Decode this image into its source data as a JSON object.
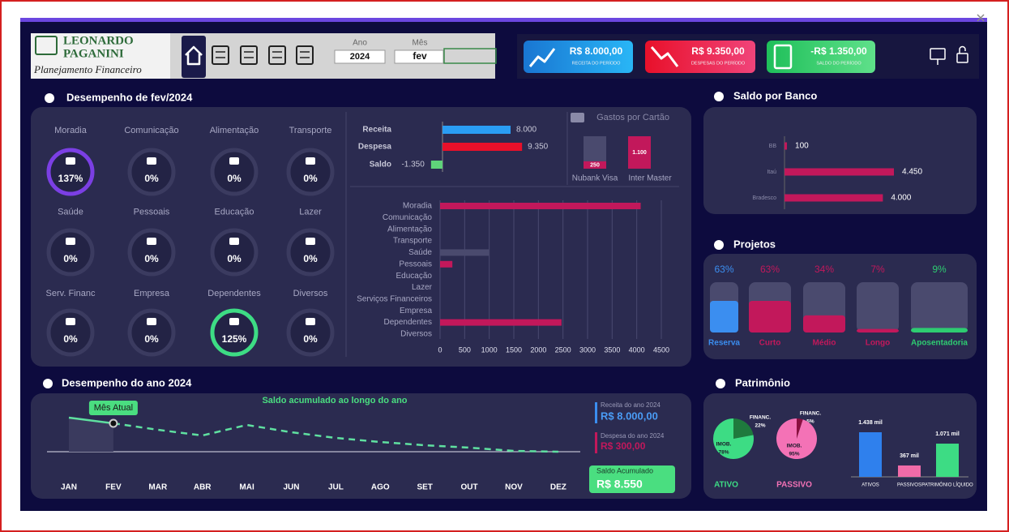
{
  "header": {
    "logo_line1": "LEONARDO",
    "logo_line2": "PAGANINI",
    "logo_subtitle": "Planejamento Financeiro",
    "year_label": "Ano",
    "year": "2024",
    "month_label": "Mês",
    "month": "fev"
  },
  "kpis": [
    {
      "value": "R$ 8.000,00",
      "label": "RECEITA DO PERÍODO"
    },
    {
      "value": "R$ 9.350,00",
      "label": "DESPESAS DO PERÍODO"
    },
    {
      "value": "-R$ 1.350,00",
      "label": "SALDO DO PERÍODO"
    }
  ],
  "performance": {
    "title": "Desempenho de fev/2024",
    "gauges": {
      "categories": [
        "Moradia",
        "Comunicação",
        "Alimentação",
        "Transporte",
        "Saúde",
        "Pessoais",
        "Educação",
        "Lazer",
        "Serv. Financ",
        "Empresa",
        "Dependentes",
        "Diversos"
      ],
      "values": [
        137,
        0,
        0,
        0,
        0,
        0,
        0,
        0,
        0,
        0,
        125,
        0
      ],
      "value_labels": [
        "137%",
        "0%",
        "0%",
        "0%",
        "0%",
        "0%",
        "0%",
        "0%",
        "0%",
        "0%",
        "125%",
        "0%"
      ],
      "colors": [
        "#7b3fe4",
        "#3b3b60",
        "#3b3b60",
        "#3b3b60",
        "#3b3b60",
        "#3b3b60",
        "#3b3b60",
        "#3b3b60",
        "#3b3b60",
        "#3b3b60",
        "#3ddc84",
        "#3b3b60"
      ]
    },
    "summary": {
      "categories": [
        "Receita",
        "Despesa",
        "Saldo"
      ],
      "values": [
        8000,
        9350,
        -1350
      ],
      "value_labels": [
        "8.000",
        "9.350",
        "-1.350"
      ],
      "colors": [
        "#2a9df4",
        "#e8102a",
        "#5fd37a"
      ]
    },
    "cards": {
      "title": "Gastos por Cartão",
      "categories": [
        "Nubank Visa",
        "Inter Master"
      ],
      "values": [
        250,
        1100
      ],
      "value_labels": [
        "250",
        "1.100"
      ],
      "color": "#c2185b"
    },
    "expenses": {
      "categories": [
        "Moradia",
        "Comunicação",
        "Alimentação",
        "Transporte",
        "Saúde",
        "Pessoais",
        "Educação",
        "Lazer",
        "Serviços Financeiros",
        "Empresa",
        "Dependentes",
        "Diversos"
      ],
      "values": [
        4080,
        0,
        0,
        0,
        990,
        250,
        0,
        0,
        0,
        0,
        2470,
        0
      ],
      "colors": [
        "#c2185b",
        "#c2185b",
        "#c2185b",
        "#c2185b",
        "#4a4a6e",
        "#c2185b",
        "#c2185b",
        "#c2185b",
        "#c2185b",
        "#c2185b",
        "#c2185b",
        "#c2185b"
      ],
      "xlim": [
        0,
        4500
      ],
      "xticks": [
        0,
        500,
        1000,
        1500,
        2000,
        2500,
        3000,
        3500,
        4000,
        4500
      ]
    }
  },
  "bank": {
    "title": "Saldo por Banco",
    "categories": [
      "BB",
      "Itaú",
      "Bradesco"
    ],
    "values": [
      100,
      4450,
      4000
    ],
    "value_labels": [
      "100",
      "4.450",
      "4.000"
    ],
    "color": "#c2185b"
  },
  "projects": {
    "title": "Projetos",
    "categories": [
      "Reserva",
      "Curto",
      "Médio",
      "Longo",
      "Aposentadoria"
    ],
    "values": [
      63,
      63,
      34,
      7,
      9
    ],
    "value_labels": [
      "63%",
      "63%",
      "34%",
      "7%",
      "9%"
    ],
    "colors": [
      "#3b8ef0",
      "#c2185b",
      "#c2185b",
      "#c2185b",
      "#2ecc71"
    ]
  },
  "year": {
    "title": "Desempenho do ano 2024",
    "chart_title": "Saldo acumulado ao longo do ano",
    "callout": "Mês Atual",
    "categories": [
      "JAN",
      "FEV",
      "MAR",
      "ABR",
      "MAI",
      "JUN",
      "JUL",
      "AGO",
      "SET",
      "OUT",
      "NOV",
      "DEZ"
    ],
    "values": [
      10260,
      8550,
      6600,
      4890,
      8060,
      5860,
      4150,
      2930,
      1950,
      1220,
      240,
      0
    ],
    "color": "#5fe0a0",
    "receita_label": "Receita do ano 2024",
    "receita": "R$ 8.000,00",
    "despesa_label": "Despesa do ano 2024",
    "despesa": "R$ 300,00",
    "saldo_label": "Saldo Acumulado",
    "saldo": "R$ 8.550"
  },
  "patrimonio": {
    "title": "Patrimônio",
    "pies": [
      {
        "title": "ATIVO",
        "categories": [
          "FINANC.",
          "IMOB."
        ],
        "values": [
          22,
          78
        ],
        "value_labels": [
          "22%",
          "78%"
        ],
        "colors": [
          "#1f7a3d",
          "#3ddc84"
        ]
      },
      {
        "title": "PASSIVO",
        "categories": [
          "FINANC.",
          "IMOB."
        ],
        "values": [
          5,
          95
        ],
        "value_labels": [
          "5%",
          "95%"
        ],
        "colors": [
          "#8b1040",
          "#f472b6"
        ]
      }
    ],
    "bars": {
      "categories": [
        "ATIVOS",
        "PASSIVOS",
        "PATRIMÔNIO LÍQUIDO"
      ],
      "values": [
        1438,
        367,
        1071
      ],
      "value_labels": [
        "1.438 mil",
        "367 mil",
        "1.071 mil"
      ],
      "colors": [
        "#2f80ed",
        "#f06ba8",
        "#3ddc84"
      ]
    }
  }
}
